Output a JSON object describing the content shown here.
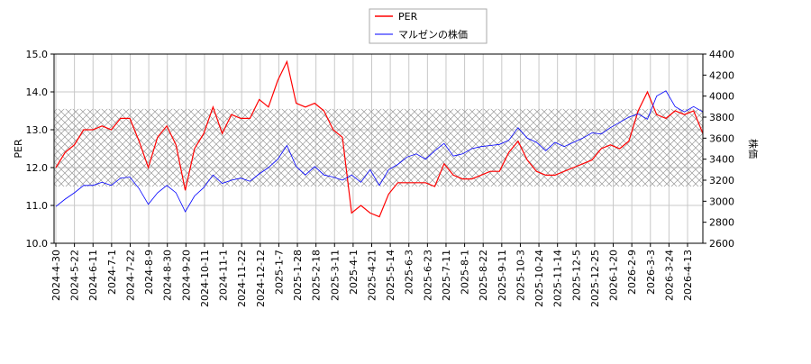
{
  "chart_data": {
    "type": "line",
    "title": "",
    "xlabel": "",
    "ylabel_left": "PER",
    "ylabel_right": "株価",
    "ylim_left": [
      10.0,
      15.0
    ],
    "ylim_right": [
      2600,
      4400
    ],
    "yticks_left": [
      "10.0",
      "11.0",
      "12.0",
      "13.0",
      "14.0",
      "15.0"
    ],
    "yticks_right": [
      "2600",
      "2800",
      "3000",
      "3200",
      "3400",
      "3600",
      "3800",
      "4000",
      "4200",
      "4400"
    ],
    "xtick_labels": [
      "2024-4-30",
      "2024-5-22",
      "2024-6-11",
      "2024-7-1",
      "2024-7-22",
      "2024-8-9",
      "2024-8-30",
      "2024-9-20",
      "2024-10-11",
      "2024-11-1",
      "2024-11-22",
      "2024-12-12",
      "2025-1-7",
      "2025-1-28",
      "2025-2-18",
      "2025-3-11",
      "2025-4-1",
      "2025-4-21",
      "2025-5-14",
      "2025-6-3",
      "2025-6-23",
      "2025-7-11",
      "2025-8-1",
      "2025-8-22",
      "2025-9-11",
      "2025-10-3",
      "2025-10-24",
      "2025-11-14",
      "2025-12-5",
      "2025-12-25",
      "2026-1-20",
      "2026-2-9",
      "2026-3-3",
      "2026-3-24",
      "2026-4-13"
    ],
    "grid": true,
    "legend_position": "top-center",
    "shaded_band_per": [
      11.5,
      13.55
    ],
    "x": [
      "2024-4-30",
      "2024-5-10",
      "2024-5-22",
      "2024-6-3",
      "2024-6-11",
      "2024-6-20",
      "2024-7-1",
      "2024-7-10",
      "2024-7-22",
      "2024-7-31",
      "2024-8-9",
      "2024-8-21",
      "2024-8-30",
      "2024-9-10",
      "2024-9-20",
      "2024-10-1",
      "2024-10-11",
      "2024-10-22",
      "2024-11-1",
      "2024-11-12",
      "2024-11-22",
      "2024-12-3",
      "2024-12-12",
      "2024-12-24",
      "2025-1-7",
      "2025-1-17",
      "2025-1-28",
      "2025-2-7",
      "2025-2-18",
      "2025-2-28",
      "2025-3-11",
      "2025-3-21",
      "2025-4-1",
      "2025-4-10",
      "2025-4-21",
      "2025-5-1",
      "2025-5-14",
      "2025-5-23",
      "2025-6-3",
      "2025-6-12",
      "2025-6-23",
      "2025-7-2",
      "2025-7-11",
      "2025-7-22",
      "2025-8-1",
      "2025-8-12",
      "2025-8-22",
      "2025-9-2",
      "2025-9-11",
      "2025-9-22",
      "2025-10-3",
      "2025-10-14",
      "2025-10-24",
      "2025-11-4",
      "2025-11-14",
      "2025-11-25",
      "2025-12-5",
      "2025-12-15",
      "2025-12-25",
      "2026-1-8",
      "2026-1-20",
      "2026-1-29",
      "2026-2-9",
      "2026-2-18",
      "2026-3-3",
      "2026-3-12",
      "2026-3-24",
      "2026-4-2",
      "2026-4-13",
      "2026-4-22",
      "2026-4-28"
    ],
    "series": [
      {
        "name": "PER",
        "axis": "left",
        "color": "#ff0000",
        "values": [
          12.0,
          12.4,
          12.6,
          13.0,
          13.0,
          13.1,
          13.0,
          13.3,
          13.3,
          12.7,
          12.0,
          12.8,
          13.1,
          12.6,
          11.4,
          12.5,
          12.9,
          13.6,
          12.9,
          13.4,
          13.3,
          13.3,
          13.8,
          13.6,
          14.3,
          14.8,
          13.7,
          13.6,
          13.7,
          13.5,
          13.0,
          12.8,
          10.8,
          11.0,
          10.8,
          10.7,
          11.3,
          11.6,
          11.6,
          11.6,
          11.6,
          11.5,
          12.1,
          11.8,
          11.7,
          11.7,
          11.8,
          11.9,
          11.9,
          12.4,
          12.7,
          12.2,
          11.9,
          11.8,
          11.8,
          11.9,
          12.0,
          12.1,
          12.2,
          12.5,
          12.6,
          12.5,
          12.7,
          13.5,
          14.0,
          13.4,
          13.3,
          13.5,
          13.4,
          13.5,
          12.9
        ]
      },
      {
        "name": "マルゼンの株価",
        "axis": "right",
        "color": "#0000ff",
        "values": [
          2950,
          3020,
          3080,
          3150,
          3150,
          3180,
          3150,
          3220,
          3230,
          3120,
          2970,
          3080,
          3150,
          3080,
          2900,
          3050,
          3130,
          3250,
          3170,
          3200,
          3220,
          3190,
          3260,
          3320,
          3400,
          3530,
          3330,
          3250,
          3330,
          3250,
          3230,
          3200,
          3250,
          3180,
          3300,
          3150,
          3300,
          3350,
          3420,
          3450,
          3400,
          3480,
          3550,
          3430,
          3450,
          3500,
          3520,
          3530,
          3540,
          3580,
          3700,
          3600,
          3560,
          3480,
          3560,
          3520,
          3560,
          3600,
          3650,
          3640,
          3700,
          3750,
          3800,
          3830,
          3780,
          4000,
          4050,
          3900,
          3850,
          3900,
          3850
        ]
      }
    ]
  },
  "legend": {
    "items": [
      "PER",
      "マルゼンの株価"
    ]
  }
}
